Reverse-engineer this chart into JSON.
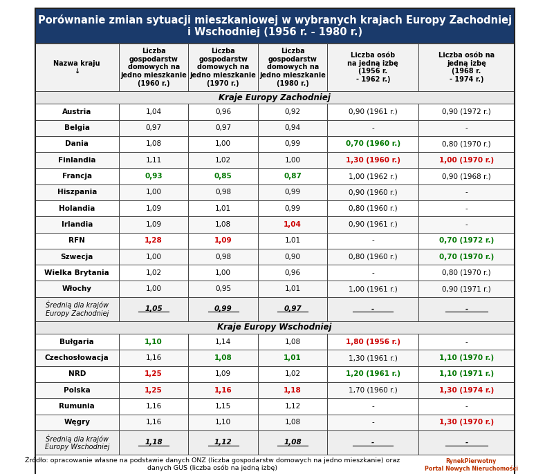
{
  "title": "Porównanie zmian sytuacji mieszkaniowej w wybranych krajach Europy Zachodniej\ni Wschodniej (1956 r. - 1980 r.)",
  "title_bg": "#1a3a6b",
  "title_color": "#ffffff",
  "col_headers": [
    "Nazwa kraju\n↓",
    "Liczba\ngospodarstw\ndomowych na\njedno mieszkanie\n(1960 r.)",
    "Liczba\ngospodarstw\ndomowych na\njedno mieszkanie\n(1970 r.)",
    "Liczba\ngospodarstw\ndomowych na\njedno mieszkanie\n(1980 r.)",
    "Liczba osób\nna jedną izbę\n(1956 r.\n- 1962 r.)",
    "Liczba osób na\njedną izbę\n(1968 r.\n- 1974 r.)"
  ],
  "section_west": "Kraje Europy Zachodniej",
  "section_east": "Kraje Europy Wschodniej",
  "rows_west": [
    [
      "Austria",
      "1,04",
      "0,96",
      "0,92",
      "0,90 (1961 r.)",
      "0,90 (1972 r.)"
    ],
    [
      "Belgia",
      "0,97",
      "0,97",
      "0,94",
      "-",
      "-"
    ],
    [
      "Dania",
      "1,08",
      "1,00",
      "0,99",
      "0,70 (1960 r.)",
      "0,80 (1970 r.)"
    ],
    [
      "Finlandia",
      "1,11",
      "1,02",
      "1,00",
      "1,30 (1960 r.)",
      "1,00 (1970 r.)"
    ],
    [
      "Francja",
      "0,93",
      "0,85",
      "0,87",
      "1,00 (1962 r.)",
      "0,90 (1968 r.)"
    ],
    [
      "Hiszpania",
      "1,00",
      "0,98",
      "0,99",
      "0,90 (1960 r.)",
      "-"
    ],
    [
      "Holandia",
      "1,09",
      "1,01",
      "0,99",
      "0,80 (1960 r.)",
      "-"
    ],
    [
      "Irlandia",
      "1,09",
      "1,08",
      "1,04",
      "0,90 (1961 r.)",
      "-"
    ],
    [
      "RFN",
      "1,28",
      "1,09",
      "1,01",
      "-",
      "0,70 (1972 r.)"
    ],
    [
      "Szwecja",
      "1,00",
      "0,98",
      "0,90",
      "0,80 (1960 r.)",
      "0,70 (1970 r.)"
    ],
    [
      "Wielka Brytania",
      "1,02",
      "1,00",
      "0,96",
      "-",
      "0,80 (1970 r.)"
    ],
    [
      "Włochy",
      "1,00",
      "0,95",
      "1,01",
      "1,00 (1961 r.)",
      "0,90 (1971 r.)"
    ]
  ],
  "row_west_avg": [
    "Średnią dla krajów\nEuropy Zachodniej",
    "1,05",
    "0,99",
    "0,97",
    "-",
    "-"
  ],
  "rows_east": [
    [
      "Bułgaria",
      "1,10",
      "1,14",
      "1,08",
      "1,80 (1956 r.)",
      "-"
    ],
    [
      "Czechosłowacja",
      "1,16",
      "1,08",
      "1,01",
      "1,30 (1961 r.)",
      "1,10 (1970 r.)"
    ],
    [
      "NRD",
      "1,25",
      "1,09",
      "1,02",
      "1,20 (1961 r.)",
      "1,10 (1971 r.)"
    ],
    [
      "Polska",
      "1,25",
      "1,16",
      "1,18",
      "1,70 (1960 r.)",
      "1,30 (1974 r.)"
    ],
    [
      "Rumunia",
      "1,16",
      "1,15",
      "1,12",
      "-",
      "-"
    ],
    [
      "Węgry",
      "1,16",
      "1,10",
      "1,08",
      "-",
      "1,30 (1970 r.)"
    ]
  ],
  "row_east_avg": [
    "Średnią dla krajów\nEuropy Wschodniej",
    "1,18",
    "1,12",
    "1,08",
    "-",
    "-"
  ],
  "colors": {
    "red": "#cc0000",
    "green": "#007700",
    "black": "#000000",
    "border": "#444444",
    "title_bg": "#1a3a6b",
    "header_bg": "#f2f2f2",
    "section_bg": "#e8e8e8",
    "avg_bg": "#eeeeee",
    "row_bg_0": "#ffffff",
    "row_bg_1": "#f7f7f7"
  },
  "cell_colors_west": {
    "Francja_0": "green",
    "Francja_1": "green",
    "Francja_2": "green",
    "Dania_3": "green",
    "Finlandia_3": "red",
    "Finlandia_4": "red",
    "Irlandia_2": "red",
    "RFN_0": "red",
    "RFN_1": "red",
    "RFN_4": "green",
    "Szwecja_4": "green"
  },
  "cell_colors_east": {
    "Bułgaria_0": "green",
    "Bułgaria_3": "red",
    "Czechosłowacja_1": "green",
    "Czechosłowacja_2": "green",
    "Czechosłowacja_4": "green",
    "NRD_0": "red",
    "NRD_3": "green",
    "NRD_4": "green",
    "Polska_0": "red",
    "Polska_1": "red",
    "Polska_2": "red",
    "Polska_4": "red",
    "Węgry_4": "red"
  },
  "footer": "ródło: opracowanie własne na podstawie danych ONZ (liczba gospodarstw domowych na jedno mieszkanie) oraz\ndanych GUS (liczba osób na jedną izbę)",
  "footer_prefix": "Ź",
  "logo_line1": "RynekPierwotny",
  "logo_line2": "Portal Nowych Nieruchomości"
}
